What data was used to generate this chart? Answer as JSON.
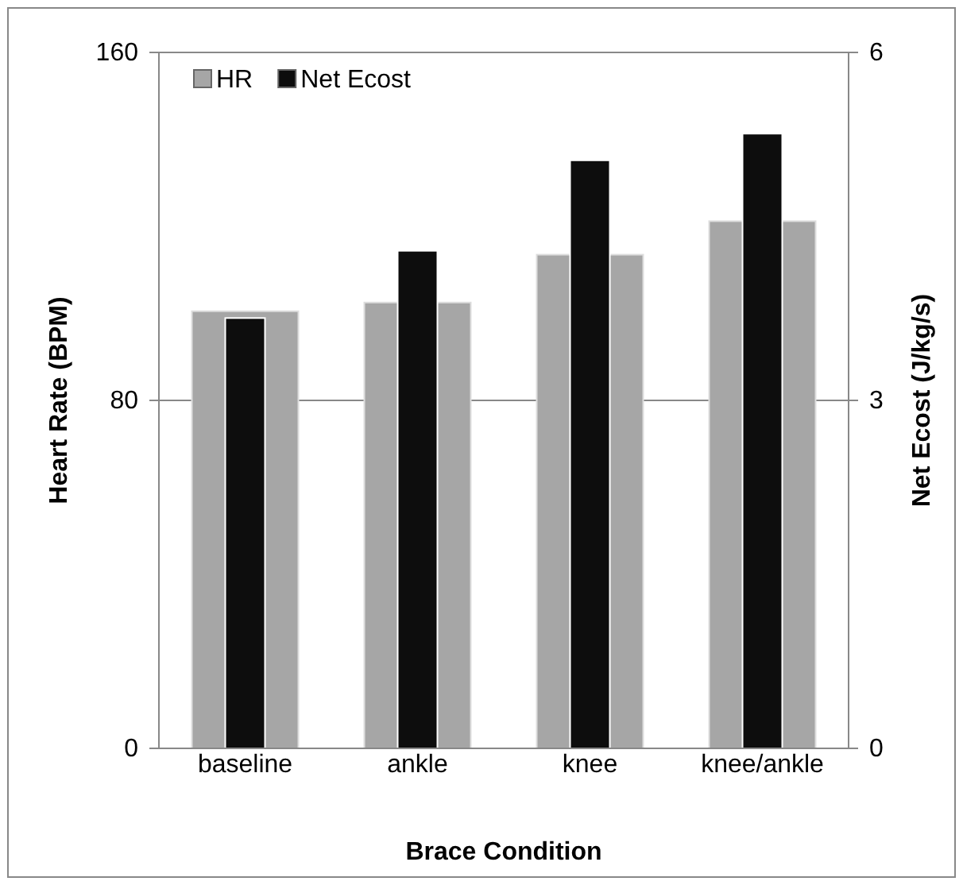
{
  "chart_data": {
    "type": "bar",
    "xlabel": "Brace Condition",
    "ylabel": "Heart Rate (BPM)",
    "y2label": "Net Ecost (J/kg/s)",
    "categories": [
      "baseline",
      "ankle",
      "knee",
      "knee/ankle"
    ],
    "series": [
      {
        "name": "HR",
        "color": "#a6a6a6",
        "values": [
          100.5,
          102.5,
          113.5,
          121.2
        ]
      },
      {
        "name": "Net Ecost",
        "color": "#0d0d0d",
        "axis": "y2",
        "values": [
          3.71,
          4.29,
          5.07,
          5.3
        ]
      }
    ],
    "ylim": [
      0,
      160
    ],
    "yticks": [
      0,
      80,
      160
    ],
    "y2lim": [
      0,
      6
    ],
    "y2ticks": [
      0,
      3,
      6
    ],
    "grid": "y",
    "legend": "top left"
  }
}
